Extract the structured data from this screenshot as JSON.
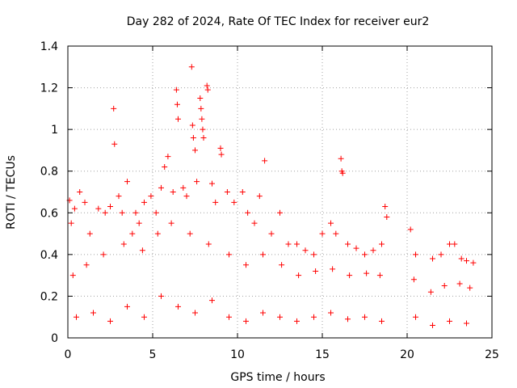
{
  "chart_data": {
    "type": "scatter",
    "title": "Day 282 of 2024, Rate Of TEC Index for receiver eur2",
    "xlabel": "GPS time / hours",
    "ylabel": "ROTI / TECUs",
    "xlim": [
      0,
      25
    ],
    "ylim": [
      0,
      1.4
    ],
    "x_ticks": [
      "0",
      "5",
      "10",
      "15",
      "20",
      "25"
    ],
    "y_ticks": [
      "0",
      "0.2",
      "0.4",
      "0.6",
      "0.8",
      "1",
      "1.2",
      "1.4"
    ],
    "grid": true,
    "marker": "+",
    "color": "#ff0000",
    "series": [
      {
        "points": [
          [
            0.1,
            0.66
          ],
          [
            0.2,
            0.55
          ],
          [
            0.4,
            0.62
          ],
          [
            0.7,
            0.7
          ],
          [
            1.0,
            0.65
          ],
          [
            1.3,
            0.5
          ],
          [
            1.8,
            0.62
          ],
          [
            2.2,
            0.6
          ],
          [
            2.5,
            0.63
          ],
          [
            2.7,
            1.1
          ],
          [
            2.75,
            0.93
          ],
          [
            3.0,
            0.68
          ],
          [
            3.2,
            0.6
          ],
          [
            3.5,
            0.75
          ],
          [
            3.8,
            0.5
          ],
          [
            4.0,
            0.6
          ],
          [
            4.2,
            0.55
          ],
          [
            4.5,
            0.65
          ],
          [
            4.9,
            0.68
          ],
          [
            5.2,
            0.6
          ],
          [
            5.5,
            0.72
          ],
          [
            5.7,
            0.82
          ],
          [
            5.9,
            0.87
          ],
          [
            6.2,
            0.7
          ],
          [
            6.4,
            1.19
          ],
          [
            6.45,
            1.12
          ],
          [
            6.5,
            1.05
          ],
          [
            6.8,
            0.72
          ],
          [
            7.0,
            0.68
          ],
          [
            7.3,
            1.3
          ],
          [
            7.35,
            1.02
          ],
          [
            7.4,
            0.96
          ],
          [
            7.5,
            0.9
          ],
          [
            7.6,
            0.75
          ],
          [
            7.8,
            1.15
          ],
          [
            7.85,
            1.1
          ],
          [
            7.9,
            1.05
          ],
          [
            7.95,
            1.0
          ],
          [
            8.0,
            0.96
          ],
          [
            8.2,
            1.21
          ],
          [
            8.25,
            1.19
          ],
          [
            8.5,
            0.74
          ],
          [
            8.7,
            0.65
          ],
          [
            9.0,
            0.91
          ],
          [
            9.05,
            0.88
          ],
          [
            9.4,
            0.7
          ],
          [
            9.8,
            0.65
          ],
          [
            10.3,
            0.7
          ],
          [
            10.6,
            0.6
          ],
          [
            11.0,
            0.55
          ],
          [
            11.3,
            0.68
          ],
          [
            11.6,
            0.85
          ],
          [
            12.0,
            0.5
          ],
          [
            12.5,
            0.6
          ],
          [
            13.0,
            0.45
          ],
          [
            13.5,
            0.45
          ],
          [
            14.0,
            0.42
          ],
          [
            14.5,
            0.4
          ],
          [
            15.0,
            0.5
          ],
          [
            15.5,
            0.55
          ],
          [
            15.8,
            0.5
          ],
          [
            16.1,
            0.86
          ],
          [
            16.15,
            0.8
          ],
          [
            16.2,
            0.79
          ],
          [
            16.5,
            0.45
          ],
          [
            17.0,
            0.43
          ],
          [
            17.5,
            0.4
          ],
          [
            18.0,
            0.42
          ],
          [
            18.5,
            0.45
          ],
          [
            18.7,
            0.63
          ],
          [
            18.8,
            0.58
          ],
          [
            20.2,
            0.52
          ],
          [
            20.5,
            0.4
          ],
          [
            21.5,
            0.38
          ],
          [
            22.0,
            0.4
          ],
          [
            22.5,
            0.45
          ],
          [
            22.8,
            0.45
          ],
          [
            23.2,
            0.38
          ],
          [
            23.5,
            0.37
          ],
          [
            23.9,
            0.36
          ],
          [
            0.3,
            0.3
          ],
          [
            1.1,
            0.35
          ],
          [
            2.1,
            0.4
          ],
          [
            3.3,
            0.45
          ],
          [
            4.4,
            0.42
          ],
          [
            5.3,
            0.5
          ],
          [
            6.1,
            0.55
          ],
          [
            7.2,
            0.5
          ],
          [
            8.3,
            0.45
          ],
          [
            9.5,
            0.4
          ],
          [
            10.5,
            0.35
          ],
          [
            11.5,
            0.4
          ],
          [
            12.6,
            0.35
          ],
          [
            13.6,
            0.3
          ],
          [
            14.6,
            0.32
          ],
          [
            15.6,
            0.33
          ],
          [
            16.6,
            0.3
          ],
          [
            17.6,
            0.31
          ],
          [
            18.4,
            0.3
          ],
          [
            20.4,
            0.28
          ],
          [
            21.4,
            0.22
          ],
          [
            22.2,
            0.25
          ],
          [
            23.1,
            0.26
          ],
          [
            23.7,
            0.24
          ],
          [
            0.5,
            0.1
          ],
          [
            1.5,
            0.12
          ],
          [
            2.5,
            0.08
          ],
          [
            3.5,
            0.15
          ],
          [
            4.5,
            0.1
          ],
          [
            5.5,
            0.2
          ],
          [
            6.5,
            0.15
          ],
          [
            7.5,
            0.12
          ],
          [
            8.5,
            0.18
          ],
          [
            9.5,
            0.1
          ],
          [
            10.5,
            0.08
          ],
          [
            11.5,
            0.12
          ],
          [
            12.5,
            0.1
          ],
          [
            13.5,
            0.08
          ],
          [
            14.5,
            0.1
          ],
          [
            15.5,
            0.12
          ],
          [
            16.5,
            0.09
          ],
          [
            17.5,
            0.1
          ],
          [
            18.5,
            0.08
          ],
          [
            20.5,
            0.1
          ],
          [
            21.5,
            0.06
          ],
          [
            22.5,
            0.08
          ],
          [
            23.5,
            0.07
          ]
        ]
      }
    ]
  }
}
